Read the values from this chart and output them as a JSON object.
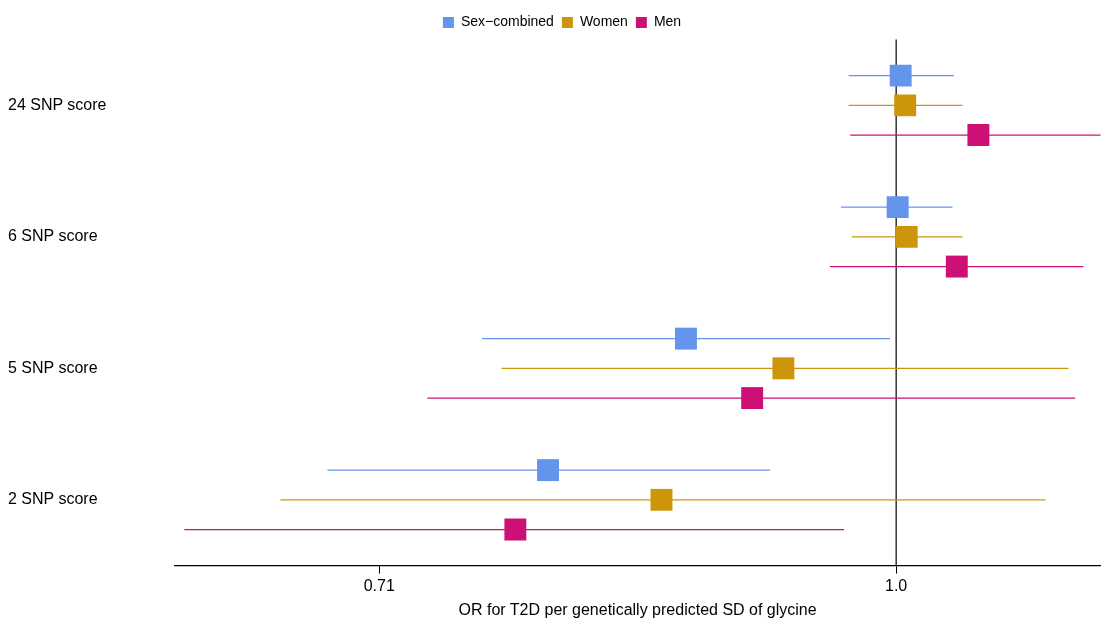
{
  "chart_data": {
    "type": "scatter",
    "orientation": "horizontal",
    "log": "x",
    "marker": "square",
    "grid": false,
    "legend": "top",
    "categories": [
      "24 SNP score",
      "6 SNP score",
      "5 SNP score",
      "2 SNP score"
    ],
    "xlabel": "OR for T2D per genetically predicted SD of glycine",
    "xlim": [
      0.62,
      1.145
    ],
    "xticks": [
      0.71,
      {
        "value": 1,
        "label": "1.0"
      }
    ],
    "ref_lines": [
      {
        "axis": "x",
        "value": 1,
        "color": "#000000"
      }
    ],
    "series": [
      {
        "name": "Sex−combined",
        "color": "#6495ed",
        "values": [
          1.003,
          1.001,
          0.87,
          0.794
        ],
        "errors": [
          [
            0.969,
            1.039
          ],
          [
            0.964,
            1.038
          ],
          [
            0.76,
            0.996
          ],
          [
            0.686,
            0.92
          ]
        ]
      },
      {
        "name": "Women",
        "color": "#cd950c",
        "values": [
          1.006,
          1.007,
          0.928,
          0.856
        ],
        "errors": [
          [
            0.969,
            1.045
          ],
          [
            0.971,
            1.045
          ],
          [
            0.77,
            1.121
          ],
          [
            0.665,
            1.104
          ]
        ]
      },
      {
        "name": "Men",
        "color": "#cd1076",
        "values": [
          1.056,
          1.041,
          0.909,
          0.777
        ],
        "errors": [
          [
            0.97,
            1.145
          ],
          [
            0.957,
            1.132
          ],
          [
            0.733,
            1.126
          ],
          [
            0.624,
            0.966
          ]
        ]
      }
    ]
  }
}
